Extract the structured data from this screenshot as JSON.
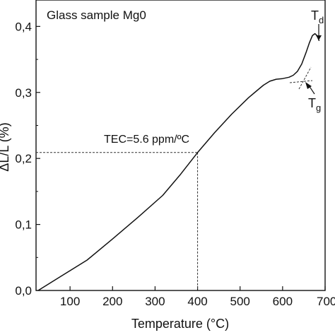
{
  "chart_data": {
    "type": "line",
    "title": "Glass sample Mg0",
    "xlabel": "Temperature (°C)",
    "ylabel": "ΔL/L (%)",
    "xlim": [
      20,
      700
    ],
    "ylim": [
      0,
      0.44
    ],
    "x_ticks": [
      100,
      200,
      300,
      400,
      500,
      600,
      700
    ],
    "x_tick_labels": [
      "100",
      "200",
      "300",
      "400",
      "500",
      "600",
      "700"
    ],
    "y_ticks": [
      0.0,
      0.1,
      0.2,
      0.3,
      0.4
    ],
    "y_tick_labels": [
      "0,0",
      "0,1",
      "0,2",
      "0,3",
      "0,4"
    ],
    "grid": false,
    "series": [
      {
        "x": [
          25,
          80,
          140,
          200,
          260,
          318,
          360,
          400,
          440,
          480,
          520,
          540,
          555,
          570,
          585,
          600,
          615,
          625,
          635,
          645,
          655,
          663,
          670,
          676,
          681,
          686
        ],
        "y": [
          0.0,
          0.022,
          0.046,
          0.078,
          0.111,
          0.144,
          0.176,
          0.209,
          0.239,
          0.267,
          0.292,
          0.303,
          0.311,
          0.317,
          0.32,
          0.321,
          0.323,
          0.326,
          0.332,
          0.343,
          0.36,
          0.375,
          0.386,
          0.389,
          0.386,
          0.378
        ]
      }
    ],
    "annotations": {
      "tec_label": "TEC=5.6 ppm/ºC",
      "tec_point": {
        "x": 400,
        "y": 0.209
      },
      "td_main": "T",
      "td_sub": "d",
      "td_point": {
        "x": 676,
        "y": 0.389
      },
      "tg_main": "T",
      "tg_sub": "g",
      "tg_point": {
        "x": 640,
        "y": 0.325
      }
    }
  }
}
